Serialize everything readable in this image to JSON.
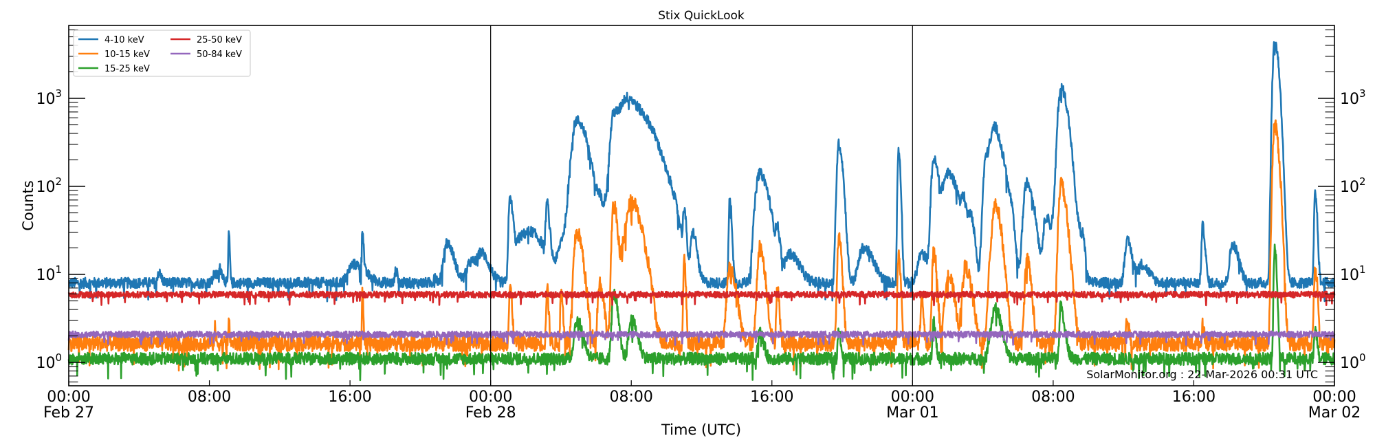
{
  "chart_data": {
    "type": "line",
    "title": "Stix QuickLook",
    "xlabel": "Time (UTC)",
    "ylabel": "Counts",
    "yscale": "log",
    "ylim": [
      0.55,
      6800
    ],
    "xlim_hours": [
      0,
      72
    ],
    "x_start": "Feb 27 00:00 UTC",
    "x_end": "Mar 02 00:00 UTC",
    "grid": false,
    "legend_position": "upper left",
    "legend_columns": 2,
    "x_ticks": [
      {
        "hours": 0,
        "time": "00:00",
        "date": "Feb 27",
        "major": true
      },
      {
        "hours": 8,
        "time": "08:00",
        "date": "",
        "major": false
      },
      {
        "hours": 16,
        "time": "16:00",
        "date": "",
        "major": false
      },
      {
        "hours": 24,
        "time": "00:00",
        "date": "Feb 28",
        "major": true
      },
      {
        "hours": 32,
        "time": "08:00",
        "date": "",
        "major": false
      },
      {
        "hours": 40,
        "time": "16:00",
        "date": "",
        "major": false
      },
      {
        "hours": 48,
        "time": "00:00",
        "date": "Mar 01",
        "major": true
      },
      {
        "hours": 56,
        "time": "08:00",
        "date": "",
        "major": false
      },
      {
        "hours": 64,
        "time": "16:00",
        "date": "",
        "major": false
      },
      {
        "hours": 72,
        "time": "00:00",
        "date": "Mar 02",
        "major": true
      }
    ],
    "y_ticks": [
      {
        "value": 1,
        "label_base": "10",
        "label_exp": "0"
      },
      {
        "value": 10,
        "label_base": "10",
        "label_exp": "1"
      },
      {
        "value": 100,
        "label_base": "10",
        "label_exp": "2"
      },
      {
        "value": 1000,
        "label_base": "10",
        "label_exp": "3"
      }
    ],
    "series": [
      {
        "name": "4-10 keV",
        "color": "#1f77b4",
        "baseline": 8.0,
        "noise": 0.06,
        "peaks": [
          [
            5.1,
            10.5,
            0.15
          ],
          [
            8.3,
            10,
            0.2
          ],
          [
            8.6,
            11,
            0.15
          ],
          [
            9.1,
            30,
            0.05
          ],
          [
            16.2,
            13,
            0.6
          ],
          [
            16.7,
            31,
            0.06
          ],
          [
            18.6,
            11,
            0.1
          ],
          [
            20.8,
            10,
            0.1
          ],
          [
            21.5,
            23,
            0.35
          ],
          [
            22.9,
            14,
            0.5
          ],
          [
            23.5,
            15,
            0.4
          ],
          [
            25.1,
            70,
            0.15
          ],
          [
            25.7,
            25,
            0.6
          ],
          [
            26.5,
            22,
            0.9
          ],
          [
            27.2,
            55,
            0.12
          ],
          [
            28.1,
            22,
            0.4
          ],
          [
            28.9,
            560,
            0.55
          ],
          [
            30.2,
            50,
            0.3
          ],
          [
            30.6,
            40,
            0.3
          ],
          [
            31.0,
            610,
            0.35
          ],
          [
            31.6,
            300,
            0.4
          ],
          [
            32.0,
            800,
            1.0
          ],
          [
            33.2,
            60,
            0.8
          ],
          [
            34.3,
            25,
            0.3
          ],
          [
            35.0,
            45,
            0.1
          ],
          [
            35.5,
            28,
            0.2
          ],
          [
            37.6,
            70,
            0.1
          ],
          [
            39.3,
            140,
            0.45
          ],
          [
            40.3,
            26,
            0.15
          ],
          [
            41.0,
            17,
            0.5
          ],
          [
            43.8,
            300,
            0.2
          ],
          [
            45.2,
            20,
            0.5
          ],
          [
            47.2,
            260,
            0.1
          ],
          [
            48.5,
            17,
            0.4
          ],
          [
            50.0,
            140,
            0.55
          ],
          [
            50.9,
            45,
            0.2
          ],
          [
            51.3,
            40,
            0.2
          ],
          [
            52.2,
            230,
            0.3
          ],
          [
            52.7,
            420,
            0.35
          ],
          [
            53.3,
            60,
            0.3
          ],
          [
            54.5,
            110,
            0.35
          ],
          [
            55.6,
            45,
            0.3
          ],
          [
            56.5,
            700,
            0.35
          ],
          [
            57.7,
            18,
            0.1
          ],
          [
            49.2,
            200,
            0.25
          ],
          [
            52.4,
            68,
            0.15
          ],
          [
            53.6,
            25,
            0.15
          ],
          [
            56.0,
            25,
            0.15
          ],
          [
            56.4,
            650,
            0.3
          ],
          [
            57.5,
            24,
            0.2
          ],
          [
            60.2,
            24,
            0.25
          ],
          [
            61.0,
            13,
            0.4
          ],
          [
            64.5,
            35,
            0.12
          ],
          [
            66.2,
            22,
            0.3
          ],
          [
            68.6,
            4400,
            0.2
          ],
          [
            70.9,
            82,
            0.1
          ]
        ]
      },
      {
        "name": "10-15 keV",
        "color": "#ff7f0e",
        "baseline": 1.65,
        "noise": 0.09,
        "peaks": [
          [
            8.3,
            2.5,
            0.05
          ],
          [
            9.1,
            2.8,
            0.05
          ],
          [
            16.7,
            6.5,
            0.05
          ],
          [
            25.1,
            7,
            0.1
          ],
          [
            27.2,
            7,
            0.08
          ],
          [
            28.0,
            6,
            0.1
          ],
          [
            28.9,
            30,
            0.3
          ],
          [
            30.2,
            8,
            0.2
          ],
          [
            31.0,
            60,
            0.2
          ],
          [
            31.5,
            15,
            0.2
          ],
          [
            32.0,
            65,
            0.5
          ],
          [
            33.0,
            4,
            0.2
          ],
          [
            35.0,
            15,
            0.08
          ],
          [
            37.6,
            12,
            0.3
          ],
          [
            39.3,
            20,
            0.25
          ],
          [
            40.3,
            7,
            0.1
          ],
          [
            43.8,
            25,
            0.15
          ],
          [
            47.2,
            17,
            0.1
          ],
          [
            50.0,
            10,
            0.3
          ],
          [
            51.0,
            12,
            0.3
          ],
          [
            52.7,
            60,
            0.3
          ],
          [
            54.5,
            15,
            0.2
          ],
          [
            56.5,
            55,
            0.3
          ],
          [
            48.5,
            5,
            0.1
          ],
          [
            49.2,
            18,
            0.15
          ],
          [
            52.4,
            12,
            0.2
          ],
          [
            56.4,
            60,
            0.2
          ],
          [
            60.2,
            3,
            0.1
          ],
          [
            64.5,
            2.6,
            0.1
          ],
          [
            68.6,
            480,
            0.2
          ],
          [
            70.9,
            12,
            0.12
          ]
        ]
      },
      {
        "name": "15-25 keV",
        "color": "#2ca02c",
        "baseline": 1.1,
        "noise": 0.07,
        "peaks": [
          [
            28.9,
            3,
            0.3
          ],
          [
            31.0,
            6,
            0.2
          ],
          [
            32.0,
            3,
            0.3
          ],
          [
            39.3,
            2.2,
            0.2
          ],
          [
            43.8,
            2.4,
            0.1
          ],
          [
            52.7,
            4,
            0.3
          ],
          [
            56.5,
            3,
            0.2
          ],
          [
            49.2,
            3,
            0.1
          ],
          [
            52.4,
            2,
            0.2
          ],
          [
            56.4,
            3,
            0.1
          ],
          [
            68.6,
            19.5,
            0.1
          ],
          [
            70.9,
            2.3,
            0.1
          ]
        ]
      },
      {
        "name": "25-50 keV",
        "color": "#d62728",
        "baseline": 5.9,
        "noise": 0.035,
        "peaks": []
      },
      {
        "name": "50-84 keV",
        "color": "#9467bd",
        "baseline": 2.08,
        "noise": 0.035,
        "peaks": []
      }
    ],
    "annotations": [
      {
        "text": "SolarMonitor.org : 22-Mar-2026 00:31 UTC",
        "position": "lower right"
      }
    ]
  },
  "legend": {
    "items": [
      {
        "label": "4-10 keV",
        "color": "#1f77b4"
      },
      {
        "label": "10-15 keV",
        "color": "#ff7f0e"
      },
      {
        "label": "15-25 keV",
        "color": "#2ca02c"
      },
      {
        "label": "25-50 keV",
        "color": "#d62728"
      },
      {
        "label": "50-84 keV",
        "color": "#9467bd"
      }
    ]
  },
  "watermark": "SolarMonitor.org : 22-Mar-2026 00:31 UTC"
}
